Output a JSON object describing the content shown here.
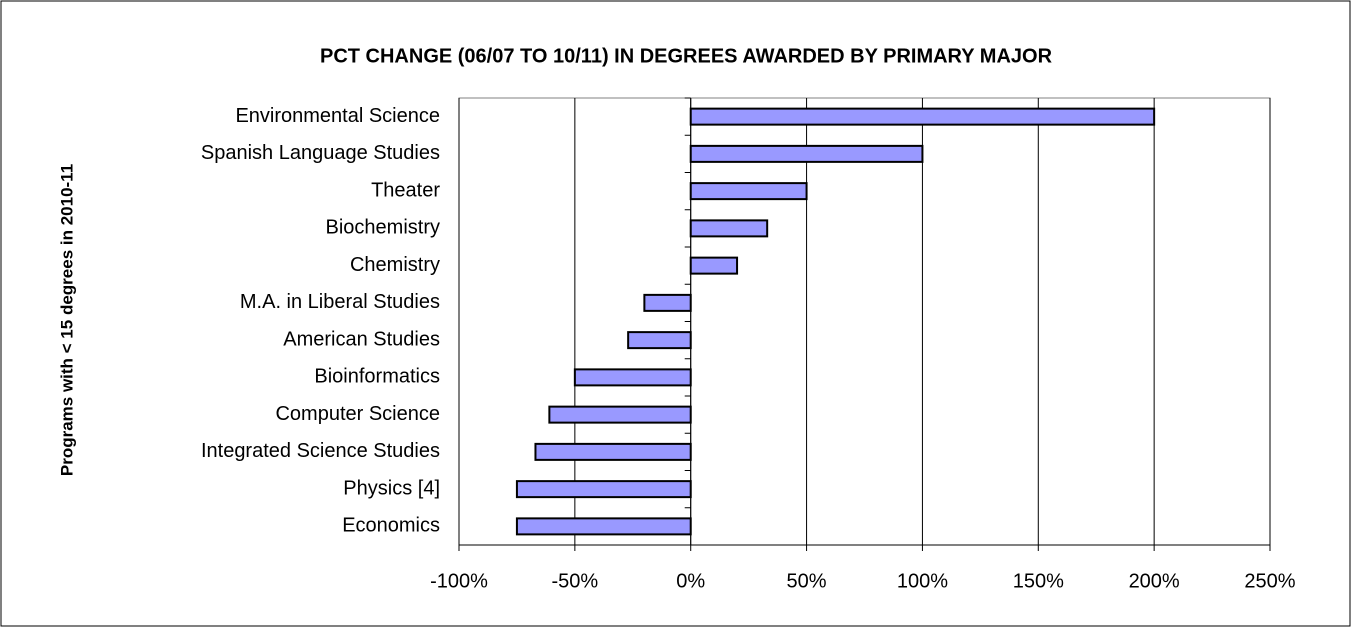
{
  "chart_data": {
    "type": "bar",
    "orientation": "horizontal",
    "title": "PCT CHANGE (06/07 TO 10/11) IN DEGREES AWARDED BY PRIMARY MAJOR",
    "y_label": "Programs with < 15 degrees in 2010-11",
    "categories": [
      "Environmental Science",
      "Spanish Language Studies",
      "Theater",
      "Biochemistry",
      "Chemistry",
      "M.A. in Liberal Studies",
      "American Studies",
      "Bioinformatics",
      "Computer Science",
      "Integrated Science Studies",
      "Physics [4]",
      "Economics"
    ],
    "values": [
      200,
      100,
      50,
      33,
      20,
      -20,
      -27,
      -50,
      -61,
      -67,
      -75,
      -75
    ],
    "color": "#9999ff",
    "xlim": [
      -100,
      250
    ],
    "xticks": [
      {
        "value": -100,
        "label": "-100%"
      },
      {
        "value": -50,
        "label": "-50%"
      },
      {
        "value": 0,
        "label": "0%"
      },
      {
        "value": 50,
        "label": "50%"
      },
      {
        "value": 100,
        "label": "100%"
      },
      {
        "value": 150,
        "label": "150%"
      },
      {
        "value": 200,
        "label": "200%"
      },
      {
        "value": 250,
        "label": "250%"
      }
    ],
    "grid": true
  }
}
